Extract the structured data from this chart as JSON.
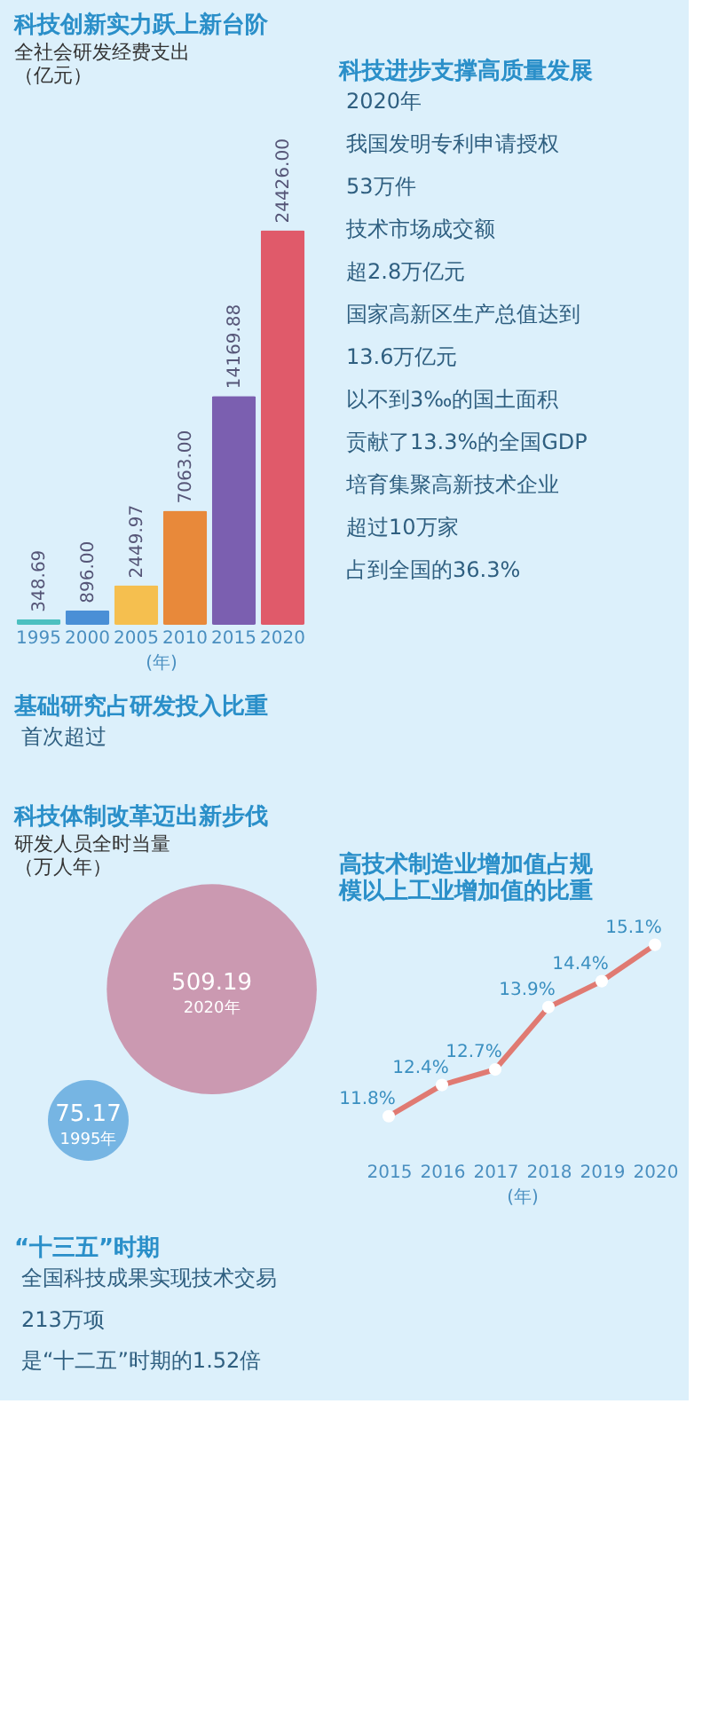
{
  "chart_data": [
    {
      "type": "bar",
      "title": "科技创新实力跃上新台阶",
      "subtitle": "全社会研发经费支出",
      "ylabel": "（亿元）",
      "xlabel": "(年)",
      "categories": [
        "1995",
        "2000",
        "2005",
        "2010",
        "2015",
        "2020"
      ],
      "values": [
        348.69,
        896.0,
        2449.97,
        7063.0,
        14169.88,
        24426.0
      ],
      "value_labels": [
        "348.69",
        "896.00",
        "2449.97",
        "7063.00",
        "14169.88",
        "24426.00"
      ],
      "colors": [
        "#4cc0c0",
        "#4a8fd6",
        "#f5bf4f",
        "#e8893a",
        "#7b5fb0",
        "#e05a6a"
      ],
      "tick_labels": "x",
      "legend": false
    },
    {
      "type": "other",
      "title": "科技进步支撑高质量发展",
      "annotations": [
        "2020年",
        "我国发明专利申请授权",
        "53万件",
        "技术市场成交额",
        "超2.8万亿元",
        "国家高新区生产总值达到",
        "13.6万亿元",
        "以不到3‰的国土面积",
        "贡献了13.3%的全国GDP",
        "培育集聚高新技术企业",
        "超过10万家",
        "占到全国的36.3%"
      ]
    },
    {
      "type": "other",
      "title": "基础研究占研发投入比重",
      "annotations": [
        "首次超过"
      ]
    },
    {
      "type": "line",
      "title": "高技术制造业增加值占规模以上工业增加值的比重",
      "xlabel": "(年)",
      "categories": [
        "2015",
        "2016",
        "2017",
        "2018",
        "2019",
        "2020"
      ],
      "series": [
        {
          "color": "#e07a72",
          "values": [
            11.8,
            12.4,
            12.7,
            13.9,
            14.4,
            15.1
          ],
          "value_labels": [
            "11.8%",
            "12.4%",
            "12.7%",
            "13.9%",
            "14.4%",
            "15.1%"
          ]
        }
      ],
      "marker": "circle",
      "line_style": "solid",
      "tick_labels": "x",
      "legend": false
    },
    {
      "type": "other",
      "title": "科技体制改革迈出新步伐",
      "subtitle": "研发人员全时当量",
      "ylabel": "（万人年）",
      "categories": [
        "1995年",
        "2020年"
      ],
      "values": [
        75.17,
        509.19
      ],
      "value_labels": [
        "75.17",
        "509.19"
      ],
      "colors": [
        "#6aaee0",
        "#c98fa8"
      ]
    },
    {
      "type": "other",
      "title": "“十三五”时期",
      "annotations": [
        "全国科技成果实现技术交易",
        "213万项",
        "是“十二五”时期的1.52倍"
      ]
    }
  ]
}
